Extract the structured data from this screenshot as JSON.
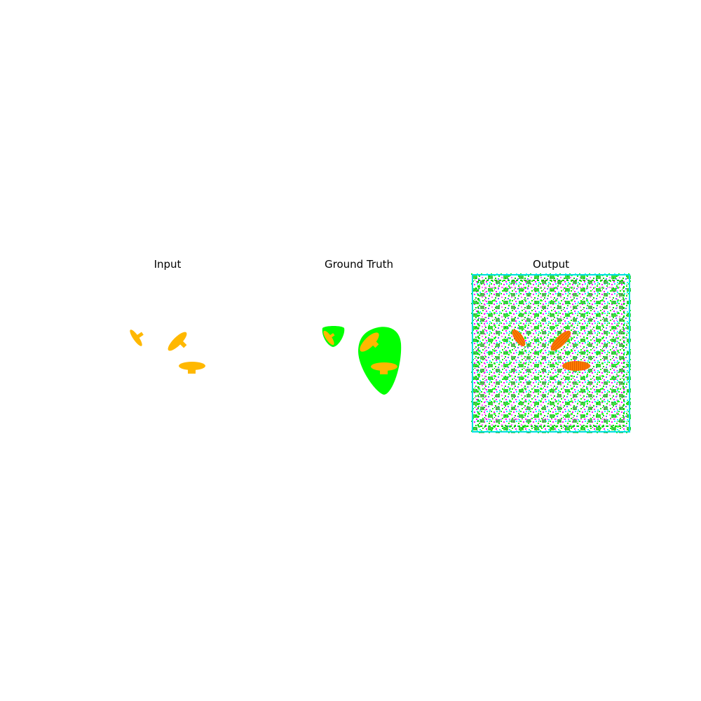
{
  "panels": [
    {
      "title": "Input"
    },
    {
      "title": "Ground Truth"
    },
    {
      "title": "Output"
    }
  ],
  "colors": {
    "object": "#ffb800",
    "mask": "#00ff00",
    "output_object": "#ff7a00",
    "background": "#ffffff"
  }
}
